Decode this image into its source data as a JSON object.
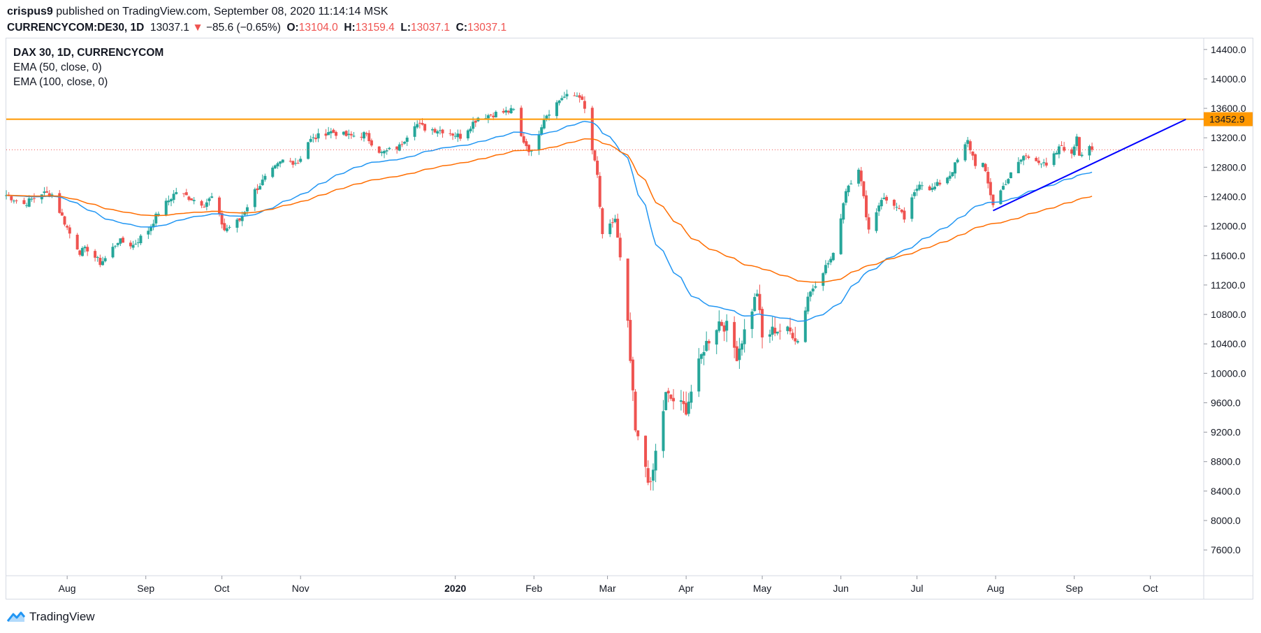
{
  "header": {
    "author": "crispus9",
    "published_text": "published on TradingView.com, September 08, 2020 11:14:14 MSK",
    "symbol_line": "CURRENCYCOM:DE30, 1D",
    "last": "13037.1",
    "change": "−85.6 (−0.65%)",
    "o_label": "O:",
    "o_value": "13104.0",
    "h_label": "H:",
    "h_value": "13159.4",
    "l_label": "L:",
    "l_value": "13037.1",
    "c_label": "C:",
    "c_value": "13037.1"
  },
  "legend": {
    "symbol": "DAX 30, 1D, CURRENCYCOM",
    "ema50": "EMA (50, close, 0)",
    "ema100": "EMA (100, close, 0)"
  },
  "brand": {
    "name": "TradingView"
  },
  "colors": {
    "up": "#26a69a",
    "down": "#ef5350",
    "ema50": "#2196f3",
    "ema100": "#ff6d00",
    "resistance": "#ff9800",
    "trendline": "#0000ff",
    "axis_text": "#131722"
  },
  "chart_data": {
    "type": "candlestick",
    "title": "DAX 30, 1D, CURRENCYCOM",
    "ylim": [
      7250,
      14650
    ],
    "y_ticks": [
      "14400.0",
      "14000.0",
      "13600.0",
      "13200.0",
      "12800.0",
      "12400.0",
      "12000.0",
      "11600.0",
      "11200.0",
      "10800.0",
      "10400.0",
      "10000.0",
      "9600.0",
      "9200.0",
      "8800.0",
      "8400.0",
      "8000.0",
      "7600.0"
    ],
    "x_ticks": [
      {
        "label": "Aug",
        "date": "2019-08-01"
      },
      {
        "label": "Sep",
        "date": "2019-09-01"
      },
      {
        "label": "Oct",
        "date": "2019-10-01"
      },
      {
        "label": "Nov",
        "date": "2019-11-01"
      },
      {
        "label": "2020",
        "date": "2020-01-01",
        "bold": true
      },
      {
        "label": "Feb",
        "date": "2020-02-01"
      },
      {
        "label": "Mar",
        "date": "2020-03-01"
      },
      {
        "label": "Apr",
        "date": "2020-04-01"
      },
      {
        "label": "May",
        "date": "2020-05-01"
      },
      {
        "label": "Jun",
        "date": "2020-06-01"
      },
      {
        "label": "Jul",
        "date": "2020-07-01"
      },
      {
        "label": "Aug",
        "date": "2020-08-01"
      },
      {
        "label": "Sep",
        "date": "2020-09-01"
      },
      {
        "label": "Oct",
        "date": "2020-10-01"
      }
    ],
    "resistance_level": 13452.9,
    "resistance_label": "13452.9",
    "last_close": 13037.1,
    "trendline": {
      "from": {
        "date": "2020-07-31",
        "value": 12210
      },
      "to": {
        "date": "2020-10-15",
        "value": 13450
      }
    },
    "price_path": [
      [
        "2019-07-08",
        12420
      ],
      [
        "2019-07-15",
        12300
      ],
      [
        "2019-07-22",
        12450
      ],
      [
        "2019-07-26",
        12430
      ],
      [
        "2019-08-02",
        11900
      ],
      [
        "2019-08-06",
        11650
      ],
      [
        "2019-08-09",
        11690
      ],
      [
        "2019-08-14",
        11500
      ],
      [
        "2019-08-16",
        11560
      ],
      [
        "2019-08-21",
        11800
      ],
      [
        "2019-08-27",
        11740
      ],
      [
        "2019-09-02",
        11950
      ],
      [
        "2019-09-06",
        12190
      ],
      [
        "2019-09-13",
        12470
      ],
      [
        "2019-09-18",
        12390
      ],
      [
        "2019-09-24",
        12300
      ],
      [
        "2019-09-27",
        12390
      ],
      [
        "2019-10-02",
        11950
      ],
      [
        "2019-10-08",
        12080
      ],
      [
        "2019-10-14",
        12480
      ],
      [
        "2019-10-18",
        12650
      ],
      [
        "2019-10-25",
        12890
      ],
      [
        "2019-10-31",
        12870
      ],
      [
        "2019-11-04",
        13150
      ],
      [
        "2019-11-12",
        13290
      ],
      [
        "2019-11-20",
        13220
      ],
      [
        "2019-11-26",
        13250
      ],
      [
        "2019-12-03",
        12990
      ],
      [
        "2019-12-10",
        13080
      ],
      [
        "2019-12-16",
        13400
      ],
      [
        "2019-12-20",
        13330
      ],
      [
        "2019-12-27",
        13300
      ],
      [
        "2020-01-03",
        13220
      ],
      [
        "2020-01-10",
        13480
      ],
      [
        "2020-01-17",
        13530
      ],
      [
        "2020-01-24",
        13570
      ],
      [
        "2020-01-27",
        13210
      ],
      [
        "2020-01-31",
        12990
      ],
      [
        "2020-02-05",
        13480
      ],
      [
        "2020-02-12",
        13750
      ],
      [
        "2020-02-19",
        13780
      ],
      [
        "2020-02-21",
        13580
      ],
      [
        "2020-02-24",
        13030
      ],
      [
        "2020-02-26",
        12680
      ],
      [
        "2020-02-28",
        11850
      ],
      [
        "2020-03-04",
        12100
      ],
      [
        "2020-03-06",
        11550
      ],
      [
        "2020-03-09",
        10640
      ],
      [
        "2020-03-12",
        9200
      ],
      [
        "2020-03-16",
        8740
      ],
      [
        "2020-03-18",
        8440
      ],
      [
        "2020-03-20",
        8920
      ],
      [
        "2020-03-24",
        9700
      ],
      [
        "2020-03-27",
        9630
      ],
      [
        "2020-04-01",
        9520
      ],
      [
        "2020-04-08",
        10350
      ],
      [
        "2020-04-14",
        10700
      ],
      [
        "2020-04-17",
        10630
      ],
      [
        "2020-04-21",
        10250
      ],
      [
        "2020-04-29",
        11100
      ],
      [
        "2020-05-01",
        10470
      ],
      [
        "2020-05-06",
        10600
      ],
      [
        "2020-05-13",
        10550
      ],
      [
        "2020-05-15",
        10440
      ],
      [
        "2020-05-19",
        11050
      ],
      [
        "2020-05-25",
        11400
      ],
      [
        "2020-05-29",
        11600
      ],
      [
        "2020-06-03",
        12500
      ],
      [
        "2020-06-08",
        12800
      ],
      [
        "2020-06-12",
        11950
      ],
      [
        "2020-06-17",
        12380
      ],
      [
        "2020-06-22",
        12300
      ],
      [
        "2020-06-26",
        12100
      ],
      [
        "2020-07-02",
        12600
      ],
      [
        "2020-07-07",
        12500
      ],
      [
        "2020-07-14",
        12700
      ],
      [
        "2020-07-21",
        13150
      ],
      [
        "2020-07-24",
        12850
      ],
      [
        "2020-07-27",
        12840
      ],
      [
        "2020-07-31",
        12300
      ],
      [
        "2020-08-05",
        12600
      ],
      [
        "2020-08-12",
        12950
      ],
      [
        "2020-08-17",
        12920
      ],
      [
        "2020-08-21",
        12800
      ],
      [
        "2020-08-27",
        13100
      ],
      [
        "2020-08-31",
        12950
      ],
      [
        "2020-09-02",
        13240
      ],
      [
        "2020-09-03",
        12980
      ],
      [
        "2020-09-07",
        13100
      ],
      [
        "2020-09-08",
        13037
      ]
    ]
  }
}
